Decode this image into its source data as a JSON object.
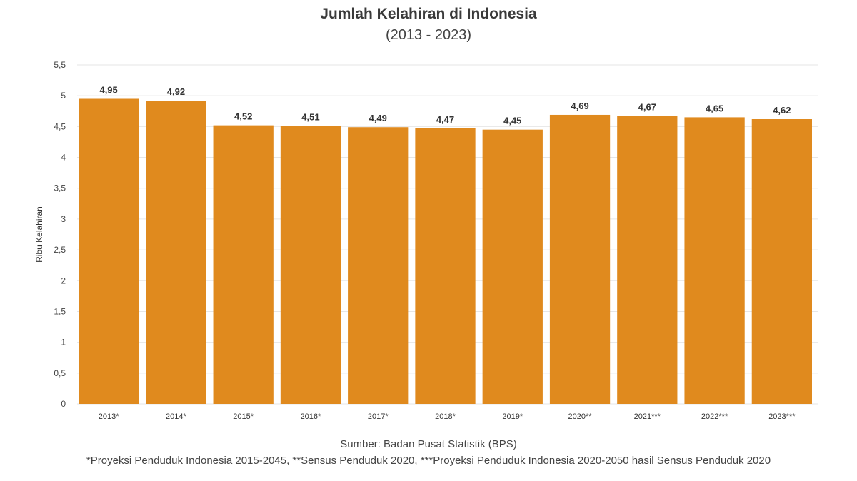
{
  "chart_data": {
    "type": "bar",
    "title": "Jumlah Kelahiran di Indonesia",
    "subtitle": "(2013 - 2023)",
    "xlabel": "",
    "ylabel": "Ribu Kelahiran",
    "ylim": [
      0,
      5.5
    ],
    "yticks": [
      "0",
      "0,5",
      "1",
      "1,5",
      "2",
      "2,5",
      "3",
      "3,5",
      "4",
      "4,5",
      "5",
      "5,5"
    ],
    "categories": [
      "2013*",
      "2014*",
      "2015*",
      "2016*",
      "2017*",
      "2018*",
      "2019*",
      "2020**",
      "2021***",
      "2022***",
      "2023***"
    ],
    "values": [
      4.95,
      4.92,
      4.52,
      4.51,
      4.49,
      4.47,
      4.45,
      4.69,
      4.67,
      4.65,
      4.62
    ],
    "data_labels": [
      "4,95",
      "4,92",
      "4,52",
      "4,51",
      "4,49",
      "4,47",
      "4,45",
      "4,69",
      "4,67",
      "4,65",
      "4,62"
    ],
    "bar_color": "#e08a1e",
    "grid": true,
    "legend": "none"
  },
  "footer": {
    "source": "Sumber: Badan Pusat Statistik (BPS)",
    "note": "*Proyeksi Penduduk Indonesia 2015-2045, **Sensus Penduduk 2020, ***Proyeksi Penduduk Indonesia 2020-2050 hasil Sensus Penduduk 2020"
  }
}
